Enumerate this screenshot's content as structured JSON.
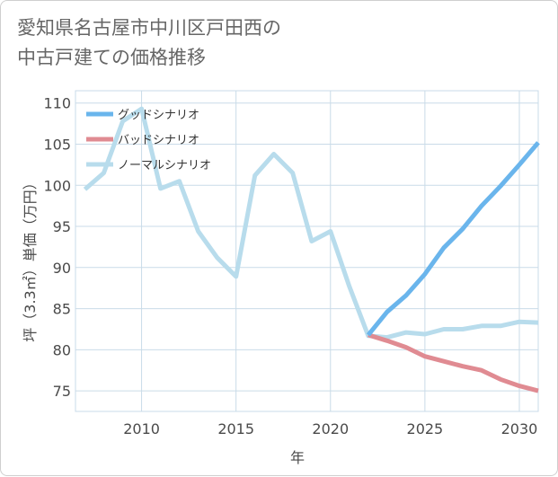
{
  "chart_data": {
    "type": "line",
    "title_lines": [
      "愛知県名古屋市中川区戸田西の",
      "中古戸建ての価格推移"
    ],
    "xlabel": "年",
    "ylabel": "坪（3.3㎡）単価（万円）",
    "xlim": [
      2006.5,
      2031
    ],
    "ylim": [
      72.5,
      111.5
    ],
    "xticks": [
      2010,
      2015,
      2020,
      2025,
      2030
    ],
    "yticks": [
      75,
      80,
      85,
      90,
      95,
      100,
      105,
      110
    ],
    "grid": true,
    "legend_position": "top-left",
    "series": [
      {
        "name": "グッドシナリオ",
        "color": "#6ab5ec",
        "x": [
          2022,
          2023,
          2024,
          2025,
          2026,
          2027,
          2028,
          2029,
          2030,
          2031
        ],
        "y": [
          81.8,
          84.6,
          86.6,
          89.2,
          92.4,
          94.7,
          97.5,
          99.9,
          102.5,
          105.2
        ]
      },
      {
        "name": "バッドシナリオ",
        "color": "#e08b92",
        "x": [
          2022,
          2023,
          2024,
          2025,
          2026,
          2027,
          2028,
          2029,
          2030,
          2031
        ],
        "y": [
          81.8,
          81.1,
          80.3,
          79.2,
          78.6,
          78.0,
          77.5,
          76.4,
          75.6,
          75.0
        ]
      },
      {
        "name": "ノーマルシナリオ",
        "color": "#b8dcec",
        "x": [
          2007,
          2008,
          2009,
          2010,
          2011,
          2012,
          2013,
          2014,
          2015,
          2016,
          2017,
          2018,
          2019,
          2020,
          2021,
          2022,
          2023,
          2024,
          2025,
          2026,
          2027,
          2028,
          2029,
          2030,
          2031
        ],
        "y": [
          99.5,
          101.5,
          107.8,
          109.3,
          99.6,
          100.5,
          94.4,
          91.2,
          88.9,
          101.2,
          103.8,
          101.5,
          93.2,
          94.4,
          87.7,
          81.7,
          81.5,
          82.1,
          81.9,
          82.5,
          82.5,
          82.9,
          82.9,
          83.4,
          83.3
        ]
      }
    ]
  }
}
